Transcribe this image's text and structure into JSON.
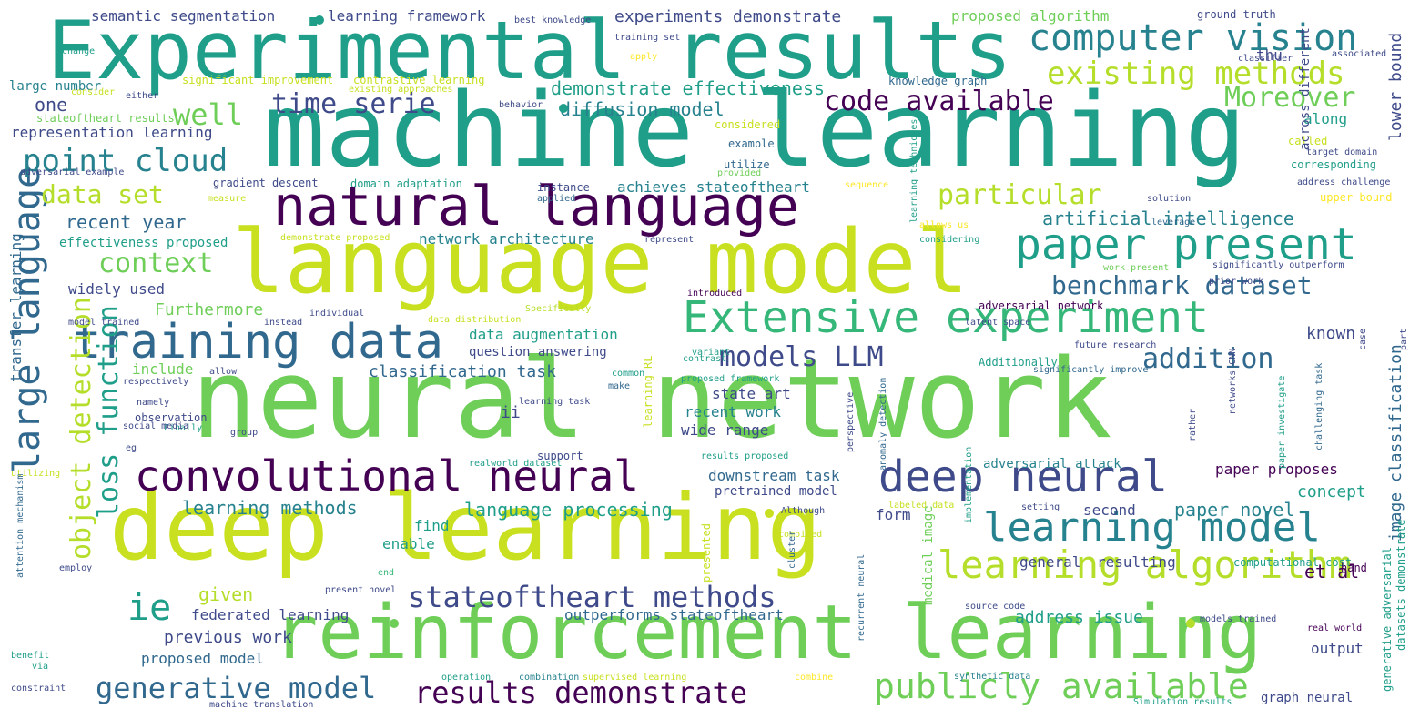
{
  "palette": {
    "c1": "#440154",
    "c2": "#3e4a89",
    "c3": "#31688e",
    "c4": "#26828e",
    "c5": "#1f9e89",
    "c6": "#35b779",
    "c7": "#6ece58",
    "c8": "#b5de2b",
    "c9": "#c8e020",
    "c10": "#fde725",
    "background": "#ffffff"
  },
  "words": [
    "Experimental results",
    "machine learning",
    "neural network",
    "language model",
    "deep learning",
    "reinforcement learning",
    "natural language",
    "convolutional neural",
    "training data",
    "large language",
    "Extensive experiment",
    "deep neural",
    "paper present",
    "learning model",
    "learning algorithm",
    "computer vision",
    "existing methods",
    "code available",
    "time serie",
    "point cloud",
    "loss function",
    "object detection",
    "stateoftheart methods",
    "results demonstrate",
    "publicly available",
    "generative model",
    "benchmark dataset",
    "Moreover",
    "particular",
    "data set",
    "well",
    "ie",
    "context",
    "models LLM",
    "addition",
    "artificial intelligence",
    "demonstrate effectiveness",
    "diffusion model",
    "recent year",
    "semantic segmentation",
    "learning framework",
    "experiments demonstrate",
    "proposed algorithm",
    "representation learning",
    "effectiveness proposed",
    "network architecture",
    "widely used",
    "Furthermore",
    "data augmentation",
    "classification task",
    "question answering",
    "include",
    "learning methods",
    "language processing",
    "downstream task",
    "pretrained model",
    "federated learning",
    "outperforms stateoftheart",
    "previous work",
    "proposed model",
    "given",
    "state art",
    "recent work",
    "wide range",
    "ii",
    "one",
    "large number",
    "significant improvement",
    "contrastive learning",
    "transfer learning",
    "image classification",
    "lower bound",
    "known",
    "along",
    "thu",
    "adversarial network",
    "address issue",
    "paper proposes",
    "paper novel",
    "concept",
    "et al",
    "resulting",
    "general",
    "second",
    "form",
    "find",
    "enable",
    "output",
    "graph neural",
    "gradient descent",
    "domain adaptation",
    "achieves stateoftheart",
    "knowledge graph",
    "corresponding",
    "address challenge",
    "upper bound",
    "solution",
    "leverage",
    "significantly outperform",
    "prior work",
    "latent space",
    "future research",
    "Additionally",
    "significantly improve",
    "adversarial attack",
    "source code",
    "models trained",
    "real world",
    "synthetic data",
    "Simulation results",
    "machine translation",
    "supervised learning",
    "combine",
    "combination",
    "operation",
    "present novel",
    "end",
    "employ",
    "constraint",
    "via",
    "benefit",
    "utilizing",
    "attention mechanism",
    "Finally",
    "eg",
    "social media",
    "observation",
    "namely",
    "respectively",
    "individual",
    "model trained",
    "instead",
    "introduced",
    "Specifically",
    "data distribution",
    "allow",
    "common",
    "make",
    "contrast",
    "variant",
    "proposed framework",
    "represent",
    "demonstrate proposed",
    "allows us",
    "considering",
    "labeled data",
    "setting",
    "combined",
    "Although",
    "cluster",
    "recurrent neural",
    "medical image",
    "anomaly detection",
    "perspective",
    "implementation",
    "paper investigate",
    "networks CNN",
    "rather",
    "challenging task",
    "computational cost",
    "hand",
    "generative adversarial",
    "datasets demonstrate",
    "learning RL",
    "learning task",
    "group",
    "support",
    "realworld dataset",
    "results proposed",
    "presented",
    "instance",
    "applied",
    "sequence",
    "utilize",
    "provided",
    "example",
    "considered",
    "behavior",
    "existing approaches",
    "consider",
    "either",
    "stateoftheart results",
    "adversarial example",
    "measure",
    "apply",
    "change",
    "training set",
    "best knowledge",
    "ground truth",
    "classifier",
    "associated",
    "called",
    "target domain",
    "across different",
    "case",
    "part",
    "work present",
    "learning techniques"
  ]
}
